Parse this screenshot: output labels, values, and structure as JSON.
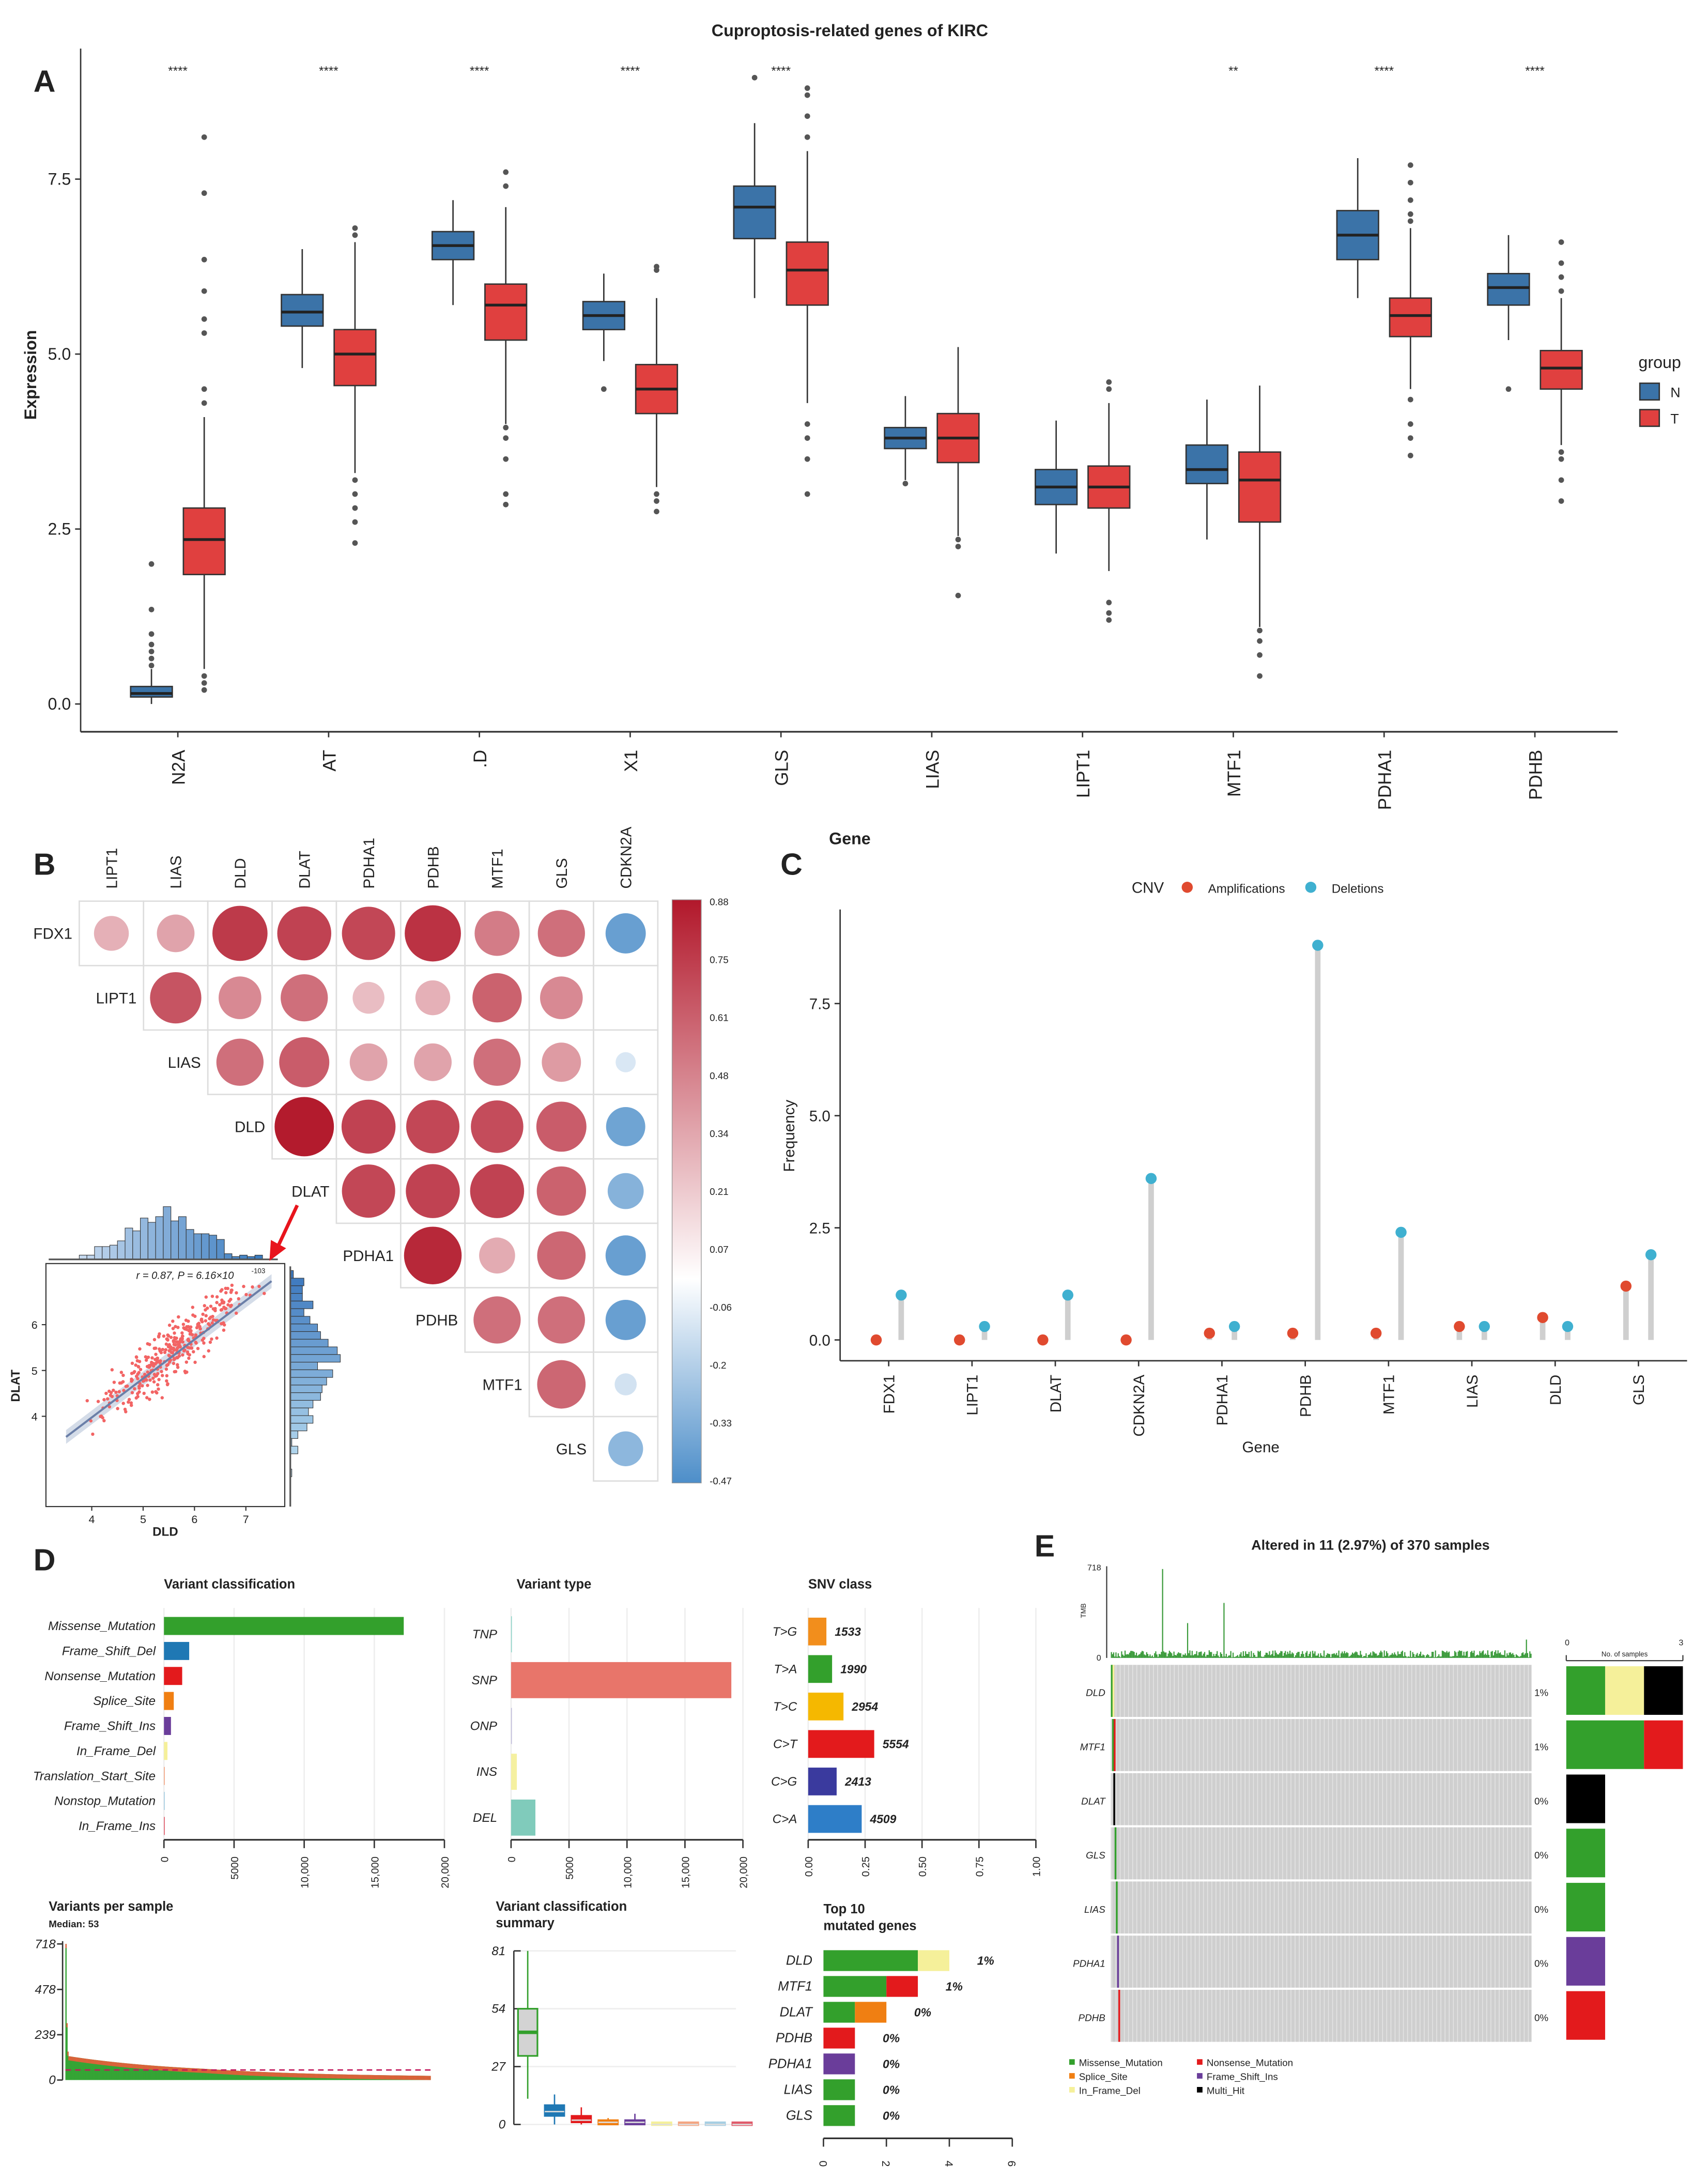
{
  "figure_title": "Cuproptosis-related genes of KIRC",
  "panel_labels": [
    "A",
    "B",
    "C",
    "D",
    "E"
  ],
  "colors": {
    "N": "#3b73a8",
    "T": "#e0403f",
    "corr_pos": "#b2182b",
    "corr_neg": "#4d8ec9",
    "amp": "#e04a2f",
    "del": "#3fb0d0",
    "missense": "#33a02c",
    "nonsense": "#e31a1c",
    "splice": "#f07f12",
    "fs_del": "#1f78b4",
    "fs_ins": "#6a3d9a",
    "inframe_del": "#f5f09a",
    "multi_hit": "#000000"
  },
  "chart_data": [
    {
      "type": "box",
      "panel": "A",
      "title": "Cuproptosis-related genes of KIRC",
      "xlabel": "Gene",
      "ylabel": "Expression",
      "ylim": [
        0,
        9
      ],
      "yticks": [
        0,
        2.5,
        5,
        7.5
      ],
      "ytick_labels": [
        "0.0",
        "2.5",
        "5.0",
        "7.5"
      ],
      "categories": [
        "N2A",
        "AT",
        ".D",
        "X1",
        "GLS",
        "LIAS",
        "LIPT1",
        "MTF1",
        "PDHA1",
        "PDHB"
      ],
      "significance": [
        "****",
        "****",
        "****",
        "****",
        "****",
        "",
        "",
        "**",
        "****",
        "****"
      ],
      "legend": {
        "title": "group",
        "items": [
          "N",
          "T"
        ],
        "placement": "right"
      },
      "series": [
        {
          "name": "N",
          "color": "#3b73a8",
          "boxes": [
            [
              0.1,
              0.15,
              0.25,
              0,
              0.5
            ],
            [
              5.4,
              5.6,
              5.85,
              4.8,
              6.5
            ],
            [
              6.35,
              6.55,
              6.75,
              5.7,
              7.2
            ],
            [
              5.35,
              5.55,
              5.75,
              4.9,
              6.15
            ],
            [
              6.65,
              7.1,
              7.4,
              5.8,
              8.3
            ],
            [
              3.65,
              3.8,
              3.95,
              3.2,
              4.4
            ],
            [
              2.85,
              3.1,
              3.35,
              2.15,
              4.05
            ],
            [
              3.15,
              3.35,
              3.7,
              2.35,
              4.35
            ],
            [
              6.35,
              6.7,
              7.05,
              5.8,
              7.8
            ],
            [
              5.7,
              5.95,
              6.15,
              5.2,
              6.7
            ]
          ],
          "outliers": [
            [
              0.55,
              0.65,
              0.75,
              0.85,
              1.0,
              1.35,
              2.0
            ],
            [],
            [],
            [
              4.5
            ],
            [
              8.95
            ],
            [
              3.15
            ],
            [],
            [],
            [],
            [
              4.5
            ]
          ]
        },
        {
          "name": "T",
          "color": "#e0403f",
          "boxes": [
            [
              1.85,
              2.35,
              2.8,
              0.5,
              4.1
            ],
            [
              4.55,
              5.0,
              5.35,
              3.3,
              6.6
            ],
            [
              5.2,
              5.7,
              6.0,
              4.0,
              7.1
            ],
            [
              4.15,
              4.5,
              4.85,
              3.1,
              5.8
            ],
            [
              5.7,
              6.2,
              6.6,
              4.3,
              7.9
            ],
            [
              3.45,
              3.8,
              4.15,
              2.4,
              5.1
            ],
            [
              2.8,
              3.1,
              3.4,
              1.9,
              4.3
            ],
            [
              2.6,
              3.2,
              3.6,
              1.1,
              4.55
            ],
            [
              5.25,
              5.55,
              5.8,
              4.5,
              6.8
            ],
            [
              4.5,
              4.8,
              5.05,
              3.7,
              5.8
            ]
          ],
          "outliers": [
            [
              0.2,
              0.3,
              0.4,
              4.3,
              4.5,
              5.3,
              5.5,
              5.9,
              6.35,
              7.3,
              8.1
            ],
            [
              2.3,
              2.6,
              2.8,
              3.0,
              3.2,
              6.7,
              6.8
            ],
            [
              2.85,
              3.0,
              3.5,
              3.8,
              3.95,
              7.4,
              7.6
            ],
            [
              2.75,
              2.9,
              3.0,
              6.2,
              6.25
            ],
            [
              3.0,
              3.5,
              3.8,
              4.0,
              8.1,
              8.4,
              8.7,
              8.8
            ],
            [
              1.55,
              2.25,
              2.35
            ],
            [
              1.2,
              1.3,
              1.45,
              4.5,
              4.6
            ],
            [
              0.4,
              0.7,
              0.9,
              1.05
            ],
            [
              3.55,
              3.8,
              4.0,
              4.35,
              6.9,
              7.0,
              7.2,
              7.45,
              7.7
            ],
            [
              2.9,
              3.2,
              3.5,
              3.6,
              5.9,
              6.1,
              6.3,
              6.6
            ]
          ]
        }
      ]
    },
    {
      "type": "heatmap",
      "panel": "B",
      "rows": [
        "FDX1",
        "LIPT1",
        "LIAS",
        "DLD",
        "DLAT",
        "PDHA1",
        "PDHB",
        "MTF1",
        "GLS"
      ],
      "columns": [
        "LIPT1",
        "LIAS",
        "DLD",
        "DLAT",
        "PDHA1",
        "PDHB",
        "MTF1",
        "GLS",
        "CDKN2A"
      ],
      "values": [
        [
          0.3,
          0.35,
          0.75,
          0.72,
          0.7,
          0.78,
          0.5,
          0.55,
          -0.4
        ],
        [
          0.65,
          0.45,
          0.55,
          0.25,
          0.3,
          0.6,
          0.45,
          null
        ],
        [
          0.55,
          0.62,
          0.35,
          0.35,
          0.55,
          0.38,
          -0.1
        ],
        [
          0.87,
          0.72,
          0.7,
          0.68,
          0.62,
          -0.38
        ],
        [
          0.7,
          0.72,
          0.72,
          0.6,
          -0.32
        ],
        [
          0.82,
          0.32,
          0.58,
          -0.4
        ],
        [
          0.55,
          0.55,
          -0.4
        ],
        [
          0.58,
          -0.12
        ],
        [
          -0.3
        ]
      ],
      "colorbar_range": [
        -0.47,
        0.88
      ],
      "colorbar_ticks": [
        "0.88",
        "0.75",
        "0.61",
        "0.48",
        "0.34",
        "0.21",
        "0.07",
        "-0.06",
        "-0.2",
        "-0.33",
        "-0.47"
      ]
    },
    {
      "type": "scatter",
      "panel": "B-inset",
      "xlabel": "DLD",
      "ylabel": "DLAT",
      "xticks": [
        4,
        5,
        6,
        7
      ],
      "yticks": [
        4,
        5,
        6
      ],
      "r": 0.87,
      "annotation": "r = 0.87, P = 6.16×10",
      "annotation_exp": "-103",
      "n_points": 370
    },
    {
      "type": "scatter",
      "subtype": "lollipop",
      "panel": "C",
      "xlabel": "Gene",
      "ylabel": "Frequency",
      "legend_title": "CNV",
      "legend_placement": "top",
      "ylim": [
        0,
        9
      ],
      "yticks": [
        0,
        2.5,
        5,
        7.5
      ],
      "ytick_labels": [
        "0.0",
        "2.5",
        "5.0",
        "7.5"
      ],
      "categories": [
        "FDX1",
        "LIPT1",
        "DLAT",
        "CDKN2A",
        "PDHA1",
        "PDHB",
        "MTF1",
        "LIAS",
        "DLD",
        "GLS"
      ],
      "series": [
        {
          "name": "Amplifications",
          "color": "#e04a2f",
          "values": [
            0,
            0,
            0,
            0,
            0.15,
            0.15,
            0.15,
            0.3,
            0.5,
            1.2
          ]
        },
        {
          "name": "Deletions",
          "color": "#3fb0d0",
          "values": [
            1.0,
            0.3,
            1.0,
            3.6,
            0.3,
            8.8,
            2.4,
            0.3,
            0.3,
            1.9
          ]
        }
      ]
    },
    {
      "type": "bar",
      "panel": "D",
      "title": "Variant classification",
      "categories": [
        "Missense_Mutation",
        "Frame_Shift_Del",
        "Nonsense_Mutation",
        "Splice_Site",
        "Frame_Shift_Ins",
        "In_Frame_Del",
        "Translation_Start_Site",
        "Nonstop_Mutation",
        "In_Frame_Ins"
      ],
      "values": [
        17100,
        1800,
        1300,
        700,
        500,
        250,
        60,
        30,
        20
      ],
      "colors": [
        "#33a02c",
        "#1f78b4",
        "#e31a1c",
        "#f07f12",
        "#6a3d9a",
        "#f5f09a",
        "#f4a582",
        "#a6cee3",
        "#e05a6a"
      ],
      "xlim": [
        0,
        20000
      ],
      "xticks": [
        0,
        5000,
        10000,
        15000,
        20000
      ],
      "xtick_labels": [
        "0",
        "5000",
        "10,000",
        "15,000",
        "20,000"
      ]
    },
    {
      "type": "bar",
      "panel": "D",
      "title": "Variant type",
      "categories": [
        "TNP",
        "SNP",
        "ONP",
        "INS",
        "DEL"
      ],
      "values": [
        0,
        19000,
        0,
        500,
        2100
      ],
      "colors": [
        "#8dd3c7",
        "#e8756a",
        "#bebada",
        "#f5f0a0",
        "#80cbbb"
      ],
      "xlim": [
        0,
        20000
      ],
      "xticks": [
        0,
        5000,
        10000,
        15000,
        20000
      ],
      "xtick_labels": [
        "0",
        "5000",
        "10,000",
        "15,000",
        "20,000"
      ]
    },
    {
      "type": "bar",
      "panel": "D",
      "title": "SNV class",
      "categories": [
        "T>G",
        "T>A",
        "T>C",
        "C>T",
        "C>G",
        "C>A"
      ],
      "counts": [
        "1533",
        "1990",
        "2954",
        "5554",
        "2413",
        "4509"
      ],
      "values": [
        0.08,
        0.105,
        0.155,
        0.29,
        0.125,
        0.235
      ],
      "colors": [
        "#f28e1c",
        "#33a02c",
        "#f5b800",
        "#e31a1c",
        "#3a3a9e",
        "#2e7ec8"
      ],
      "xlim": [
        0,
        1
      ],
      "xticks": [
        0,
        0.25,
        0.5,
        0.75,
        1
      ],
      "xtick_labels": [
        "0.00",
        "0.25",
        "0.50",
        "0.75",
        "1.00"
      ]
    },
    {
      "type": "bar",
      "panel": "D",
      "title": "Variants per sample",
      "subtitle": "Median: 53",
      "median": 53,
      "ylim": [
        0,
        718
      ],
      "yticks": [
        0,
        239,
        478,
        718
      ],
      "ytick_labels": [
        "0",
        "239",
        "478",
        "718"
      ],
      "max": 718,
      "n_samples": 370
    },
    {
      "type": "box",
      "panel": "D",
      "title": "Variant classification",
      "title2": "summary",
      "ylim": [
        0,
        81
      ],
      "yticks": [
        0,
        27,
        54,
        81
      ],
      "ytick_labels": [
        "0",
        "27",
        "54",
        "81"
      ],
      "colors": [
        "#33a02c",
        "#1f78b4",
        "#e31a1c",
        "#f07f12",
        "#6a3d9a",
        "#f5f09a",
        "#f4a582",
        "#a6cee3",
        "#e05a6a"
      ],
      "boxes": [
        [
          32,
          43,
          54,
          12,
          81
        ],
        [
          4,
          6,
          9,
          0,
          14
        ],
        [
          1,
          2,
          4,
          0,
          8
        ],
        [
          0,
          1,
          2,
          0,
          3
        ],
        [
          0,
          1,
          2,
          0,
          5
        ],
        [
          0,
          0,
          1,
          0,
          1
        ],
        [
          0,
          0,
          1,
          0,
          1
        ],
        [
          0,
          0,
          1,
          0,
          1
        ],
        [
          0,
          0,
          1,
          0,
          1
        ]
      ]
    },
    {
      "type": "bar",
      "subtype": "stacked",
      "panel": "D",
      "title": "Top 10",
      "title2": "mutated genes",
      "categories": [
        "DLD",
        "MTF1",
        "DLAT",
        "PDHB",
        "PDHA1",
        "LIAS",
        "GLS"
      ],
      "percent": [
        "1%",
        "1%",
        "0%",
        "0%",
        "0%",
        "0%",
        "0%"
      ],
      "segments": [
        [
          [
            "#33a02c",
            3
          ],
          [
            "#f5f09a",
            1
          ]
        ],
        [
          [
            "#33a02c",
            2
          ],
          [
            "#e31a1c",
            1
          ]
        ],
        [
          [
            "#33a02c",
            1
          ],
          [
            "#f07f12",
            1
          ]
        ],
        [
          [
            "#e31a1c",
            1
          ]
        ],
        [
          [
            "#6a3d9a",
            1
          ]
        ],
        [
          [
            "#33a02c",
            1
          ]
        ],
        [
          [
            "#33a02c",
            1
          ]
        ]
      ],
      "xlim": [
        0,
        6
      ],
      "xticks": [
        0,
        2,
        4,
        6
      ],
      "xtick_labels": [
        "0",
        "2",
        "4",
        "6"
      ]
    },
    {
      "type": "heatmap",
      "subtype": "oncoplot",
      "panel": "E",
      "title": "Altered in 11 (2.97%) of 370 samples",
      "tmb_label": "TMB",
      "tmb_ticks": [
        "0",
        "718"
      ],
      "tmb_max": 718,
      "genes": [
        "DLD",
        "MTF1",
        "DLAT",
        "GLS",
        "LIAS",
        "PDHA1",
        "PDHB"
      ],
      "percent": [
        "1%",
        "1%",
        "0%",
        "0%",
        "0%",
        "0%",
        "0%"
      ],
      "side_axis_label": "No. of samples",
      "side_ticks": [
        "0",
        "3"
      ],
      "side_max": 3,
      "side_segments": [
        [
          [
            "#33a02c",
            1
          ],
          [
            "#f5f09a",
            1
          ],
          [
            "#000000",
            1
          ]
        ],
        [
          [
            "#33a02c",
            2
          ],
          [
            "#e31a1c",
            1
          ]
        ],
        [
          [
            "#000000",
            1
          ]
        ],
        [
          [
            "#33a02c",
            1
          ]
        ],
        [
          [
            "#33a02c",
            1
          ]
        ],
        [
          [
            "#6a3d9a",
            1
          ]
        ],
        [
          [
            "#e31a1c",
            1
          ]
        ]
      ],
      "legend": [
        {
          "label": "Missense_Mutation",
          "color": "#33a02c"
        },
        {
          "label": "Nonsense_Mutation",
          "color": "#e31a1c"
        },
        {
          "label": "Splice_Site",
          "color": "#f07f12"
        },
        {
          "label": "Frame_Shift_Ins",
          "color": "#6a3d9a"
        },
        {
          "label": "In_Frame_Del",
          "color": "#f5f09a"
        },
        {
          "label": "Multi_Hit",
          "color": "#000000"
        }
      ]
    }
  ]
}
